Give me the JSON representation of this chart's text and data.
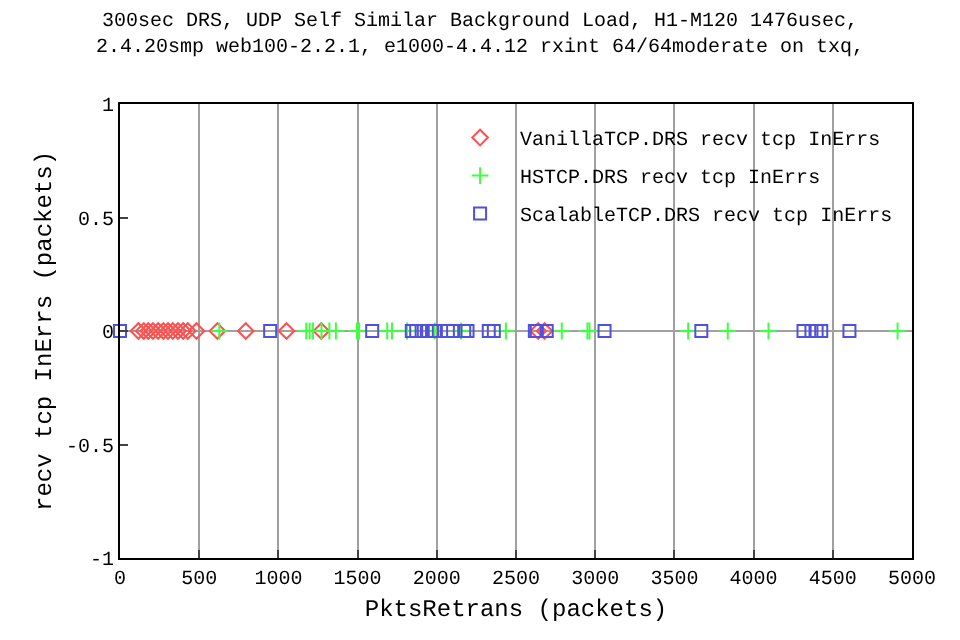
{
  "chart_data": {
    "type": "scatter",
    "title": "300sec DRS, UDP Self Similar Background Load, H1-M120 1476usec,\n2.4.20smp web100-2.2.1, e1000-4.4.12 rxint 64/64moderate on txq,",
    "xlabel": "PktsRetrans (packets)",
    "ylabel": "recv tcp InErrs (packets)",
    "xlim": [
      0,
      5000
    ],
    "xticks": [
      0,
      500,
      1000,
      1500,
      2000,
      2500,
      3000,
      3500,
      4000,
      4500,
      5000
    ],
    "ylim": [
      -1,
      1
    ],
    "yticks": [
      -1,
      -0.5,
      0,
      0.5,
      1
    ],
    "grid": "x",
    "legend": "top right",
    "ref_lines": [
      {
        "axis": "y",
        "value": 0,
        "color": "#a0a0a0"
      }
    ],
    "series": [
      {
        "name": "VanillaTCP.DRS recv tcp InErrs",
        "color": "#ff5050",
        "marker": "diamond",
        "x": [
          116,
          150,
          178,
          208,
          241,
          274,
          303,
          333,
          366,
          399,
          428,
          483,
          615,
          794,
          1051,
          1271,
          2640,
          2680
        ],
        "values": [
          0,
          0,
          0,
          0,
          0,
          0,
          0,
          0,
          0,
          0,
          0,
          0,
          0,
          0,
          0,
          0,
          0,
          0
        ]
      },
      {
        "name": "HSTCP.DRS recv tcp InErrs",
        "color": "#40ff40",
        "marker": "cross",
        "x": [
          627,
          1176,
          1197,
          1218,
          1272,
          1322,
          1363,
          1496,
          1509,
          1687,
          1717,
          1812,
          1987,
          2154,
          2436,
          2789,
          2951,
          2964,
          3587,
          3837,
          4094,
          4909
        ],
        "values": [
          0,
          0,
          0,
          0,
          0,
          0,
          0,
          0,
          0,
          0,
          0,
          0,
          0,
          0,
          0,
          0,
          0,
          0,
          0,
          0,
          0,
          0
        ]
      },
      {
        "name": "ScalableTCP.DRS recv tcp InErrs",
        "color": "#5050e0",
        "marker": "square",
        "x": [
          0,
          948,
          1592,
          1842,
          1870,
          1904,
          1937,
          1970,
          1987,
          2070,
          2103,
          2173,
          2194,
          2328,
          2360,
          2619,
          2631,
          2694,
          3059,
          3670,
          4315,
          4365,
          4398,
          4427,
          4605
        ],
        "values": [
          0,
          0,
          0,
          0,
          0,
          0,
          0,
          0,
          0,
          0,
          0,
          0,
          0,
          0,
          0,
          0,
          0,
          0,
          0,
          0,
          0,
          0,
          0,
          0,
          0
        ]
      }
    ]
  }
}
